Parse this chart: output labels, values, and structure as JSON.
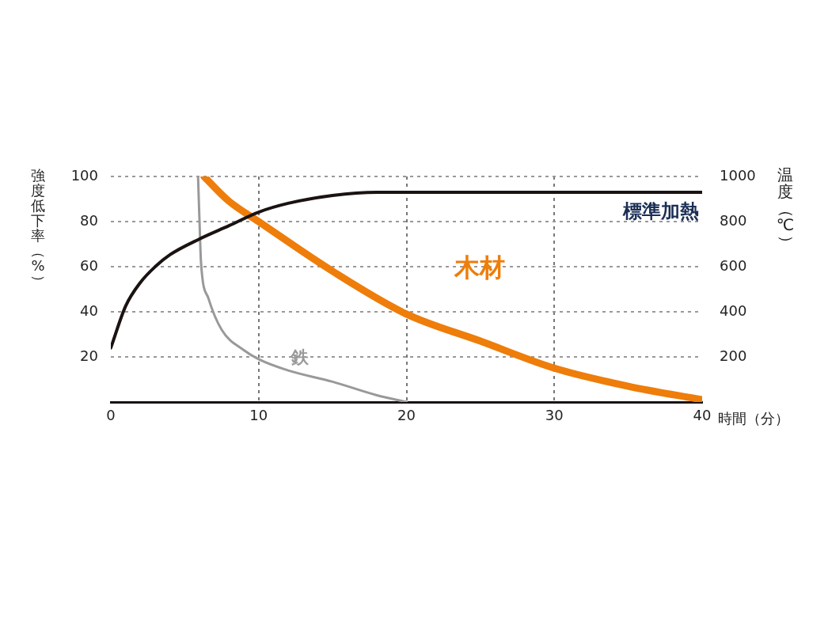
{
  "chart_data": {
    "type": "line",
    "xlabel": "時間（分）",
    "ylabel": "強度低下率（%）",
    "y2label": "温度（℃）",
    "xlim": [
      0,
      40
    ],
    "xticks": [
      0,
      10,
      20,
      30,
      40
    ],
    "ylim": [
      0,
      100
    ],
    "yticks": [
      20,
      40,
      60,
      80,
      100
    ],
    "y2lim": [
      0,
      1000
    ],
    "y2ticks": [
      200,
      400,
      600,
      800,
      1000
    ],
    "grid": true,
    "legend": false,
    "marker": "none",
    "line_style": "solid",
    "series": [
      {
        "name": "標準加熱",
        "color": "#1a1311",
        "axis": "y2",
        "x": [
          0,
          1,
          2,
          3,
          4,
          6,
          8,
          10,
          12,
          15,
          18,
          20,
          30,
          40
        ],
        "values": [
          240,
          425,
          530,
          600,
          653,
          723,
          782,
          842,
          881,
          916,
          930,
          930,
          930,
          930
        ]
      },
      {
        "name": "木材",
        "color": "#ee7d0a",
        "x": [
          6.3,
          8,
          10,
          15,
          20,
          25,
          30,
          35,
          40
        ],
        "values": [
          100,
          89,
          80,
          58,
          39,
          27,
          15,
          7,
          1
        ]
      },
      {
        "name": "鉄",
        "color": "#999999",
        "x": [
          5.9,
          6,
          6.1,
          6.6,
          7.5,
          9,
          10,
          12,
          15,
          18,
          20
        ],
        "values": [
          100,
          80,
          62,
          46,
          32,
          23,
          19,
          14,
          9,
          3,
          0
        ]
      }
    ]
  }
}
